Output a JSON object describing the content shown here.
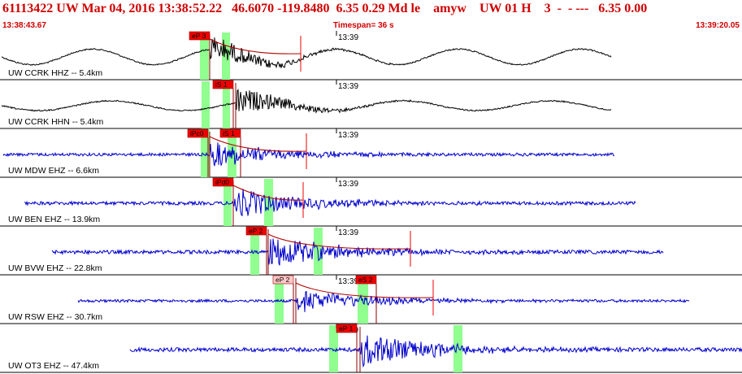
{
  "header": {
    "title": "61113422 UW Mar 04, 2016 13:38:52.22   46.6070 -119.8480  6.35 0.29 Md le    amyw    UW 01 H    3  -  - ---   6.35 0.00",
    "start_time": "13:38:43.67",
    "timespan": "Timespan=  36 s",
    "end_time": "13:39:20.05"
  },
  "colors": {
    "title": "#d00000",
    "trace_short_period": "#0000cc",
    "trace_broadband": "#000000",
    "pick_box": "#ee0000",
    "pick_box_unselected": "#ffc8c8",
    "phase_window": "#90ff90",
    "divider": "#000000"
  },
  "minute_label": "13:39",
  "channels": [
    {
      "label": "UW CCRK HHZ -- 5.4km",
      "color": "trace_broadband",
      "picks": [
        {
          "text": "eP 3",
          "style": "red"
        }
      ],
      "amp": 0.8
    },
    {
      "label": "UW CCRK HHN -- 5.4km",
      "color": "trace_broadband",
      "picks": [
        {
          "text": "iS 1",
          "style": "red"
        }
      ],
      "amp": 0.5
    },
    {
      "label": "UW MDW EHZ -- 6.6km",
      "color": "trace_short_period",
      "picks": [
        {
          "text": "iPc0",
          "style": "red"
        },
        {
          "text": "iS 1",
          "style": "red"
        }
      ],
      "amp": 0.6
    },
    {
      "label": "UW BEN EHZ -- 13.9km",
      "color": "trace_short_period",
      "picks": [
        {
          "text": "iPd0",
          "style": "red"
        }
      ],
      "amp": 0.7
    },
    {
      "label": "UW BVW EHZ -- 22.8km",
      "color": "trace_short_period",
      "picks": [
        {
          "text": "eP 2",
          "style": "red"
        }
      ],
      "amp": 0.75
    },
    {
      "label": "UW RSW EHZ -- 30.7km",
      "color": "trace_short_period",
      "picks": [
        {
          "text": "eP 2",
          "style": "pink"
        },
        {
          "text": "eS 2",
          "style": "red"
        }
      ],
      "amp": 0.55
    },
    {
      "label": "UW OT3 EHZ -- 47.4km",
      "color": "trace_short_period",
      "picks": [
        {
          "text": "eP 1",
          "style": "red"
        }
      ],
      "amp": 0.8
    }
  ]
}
